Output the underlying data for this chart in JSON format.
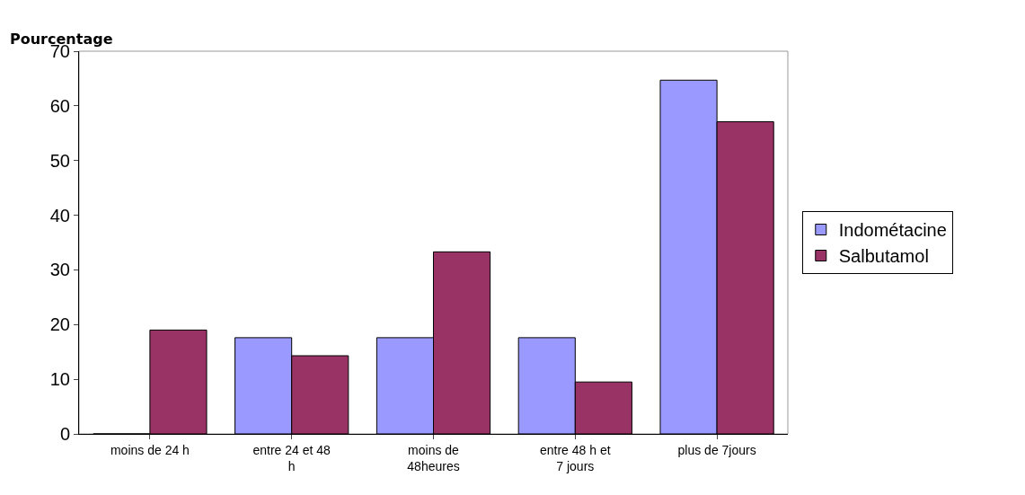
{
  "chart_data": {
    "type": "bar",
    "ylabel": "Pourcentage",
    "categories": [
      "moins de 24 h",
      "entre 24 et 48 h",
      "moins de 48heures",
      "entre 48 h et 7 jours",
      "plus de 7jours"
    ],
    "series": [
      {
        "name": "Indométacine",
        "color": "#9999ff",
        "values": [
          0,
          17.6,
          17.6,
          17.6,
          64.7
        ]
      },
      {
        "name": "Salbutamol",
        "color": "#993366",
        "values": [
          19.0,
          14.3,
          33.3,
          9.5,
          57.1
        ]
      }
    ],
    "ylim": [
      0,
      70
    ],
    "yticks": [
      0,
      10,
      20,
      30,
      40,
      50,
      60,
      70
    ],
    "grid": false,
    "legend": "right"
  }
}
